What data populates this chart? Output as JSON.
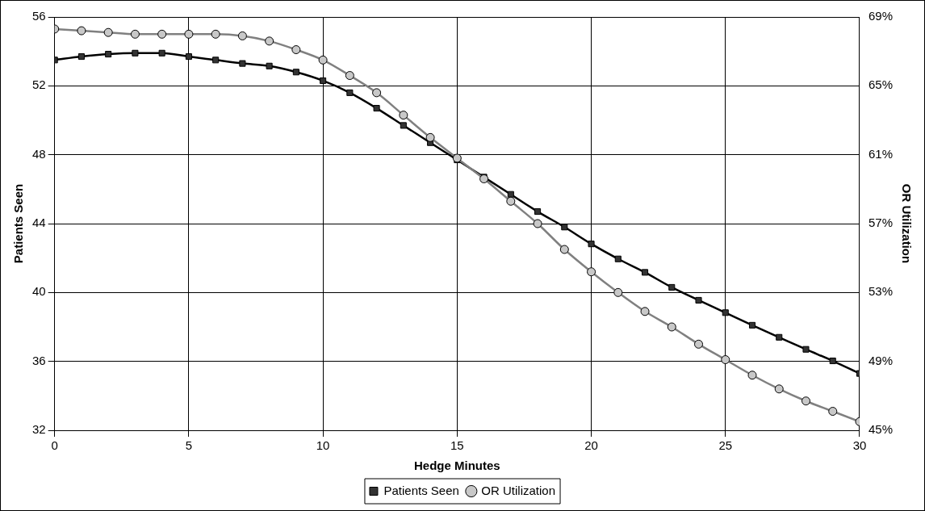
{
  "chart_data": {
    "type": "line",
    "xlabel": "Hedge Minutes",
    "ylabel": "Patients Seen",
    "y2label": "OR Utilization",
    "x": [
      0,
      1,
      2,
      3,
      4,
      5,
      6,
      7,
      8,
      9,
      10,
      11,
      12,
      13,
      14,
      15,
      16,
      17,
      18,
      19,
      20,
      21,
      22,
      23,
      24,
      25,
      26,
      27,
      28,
      29,
      30
    ],
    "xlim": [
      0,
      30
    ],
    "xticks": [
      0,
      5,
      10,
      15,
      20,
      25,
      30
    ],
    "ylim": [
      32,
      56
    ],
    "yticks": [
      32,
      36,
      40,
      44,
      48,
      52,
      56
    ],
    "y2lim": [
      45,
      69
    ],
    "y2ticks": [
      {
        "value": 45,
        "label": "45%"
      },
      {
        "value": 49,
        "label": "49%"
      },
      {
        "value": 53,
        "label": "53%"
      },
      {
        "value": 57,
        "label": "57%"
      },
      {
        "value": 61,
        "label": "61%"
      },
      {
        "value": 65,
        "label": "65%"
      },
      {
        "value": 69,
        "label": "69%"
      }
    ],
    "grid": true,
    "legend": "bottom",
    "series": [
      {
        "name": "Patients Seen",
        "color": "#000000",
        "marker": "square",
        "values": [
          53.5,
          53.7,
          53.84,
          53.9,
          53.9,
          53.7,
          53.5,
          53.3,
          53.15,
          52.8,
          52.3,
          51.6,
          50.7,
          49.7,
          48.7,
          47.7,
          46.7,
          45.7,
          44.7,
          43.8,
          42.82,
          41.95,
          41.17,
          40.3,
          39.55,
          38.83,
          38.1,
          37.4,
          36.7,
          36.03,
          35.3
        ]
      },
      {
        "name": "OR Utilization",
        "color": "#808080",
        "marker": "circle",
        "axis": "y2",
        "values": [
          68.3,
          68.2,
          68.1,
          68.0,
          68.0,
          68.0,
          68.0,
          67.9,
          67.6,
          67.1,
          66.5,
          65.6,
          64.6,
          63.3,
          62.0,
          60.8,
          59.6,
          58.3,
          57.0,
          55.5,
          54.2,
          53.0,
          51.9,
          51.0,
          50.0,
          49.1,
          48.2,
          47.4,
          46.7,
          46.1,
          45.5
        ]
      }
    ]
  }
}
